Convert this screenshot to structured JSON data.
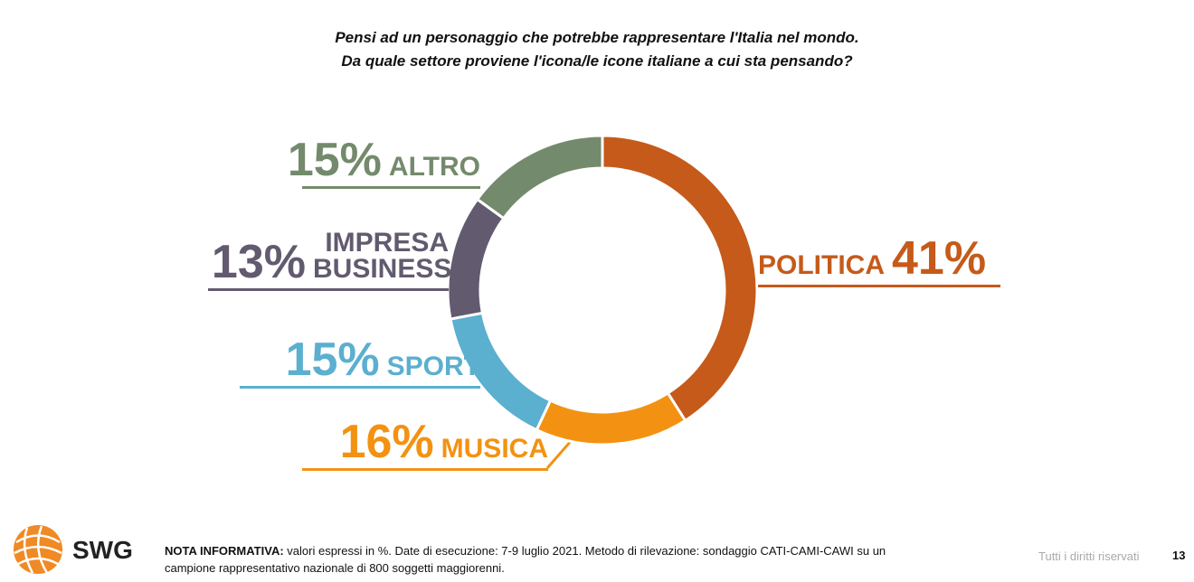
{
  "chart_data": {
    "type": "donut",
    "title": [
      "Pensi ad un personaggio che potrebbe rappresentare l'Italia nel mondo.",
      "Da quale settore proviene l'icona/le icone italiane a cui sta pensando?"
    ],
    "categories": [
      "POLITICA",
      "MUSICA",
      "SPORT",
      "IMPRESA BUSINESS",
      "ALTRO"
    ],
    "values": [
      41,
      16,
      15,
      13,
      15
    ],
    "value_labels": [
      "41%",
      "16%",
      "15%",
      "13%",
      "15%"
    ],
    "colors": [
      "#c55a1a",
      "#f39212",
      "#5bafcf",
      "#625a6f",
      "#748a6c"
    ]
  },
  "footer": {
    "logo": "SWG",
    "note_label": "NOTA INFORMATIVA:",
    "note_text": "valori espressi in %. Date di esecuzione: 7-9 luglio 2021. Metodo di rilevazione: sondaggio CATI-CAMI-CAWI su un campione rappresentativo nazionale di 800 soggetti maggiorenni.",
    "rights": "Tutti i diritti riservati",
    "page": "13"
  }
}
